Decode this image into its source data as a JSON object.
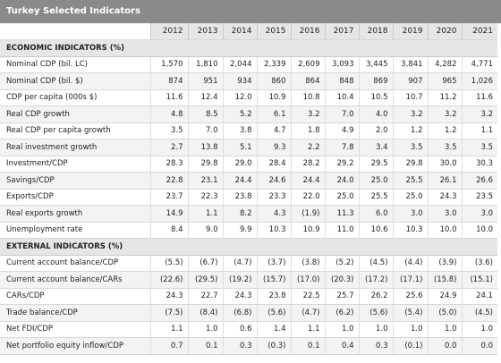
{
  "title": "Turkey Selected Indicators",
  "years": [
    "2012",
    "2013",
    "2014",
    "2015",
    "2016",
    "2017",
    "2018",
    "2019",
    "2020",
    "2021"
  ],
  "sections": [
    {
      "heading": "ECONOMIC INDICATORS (%)",
      "rows": [
        {
          "label": "Nominal CDP (bil. LC)",
          "values": [
            "1,570",
            "1,810",
            "2,044",
            "2,339",
            "2,609",
            "3,093",
            "3,445",
            "3,841",
            "4,282",
            "4,771"
          ]
        },
        {
          "label": "Nominal CDP (bil. $)",
          "values": [
            "874",
            "951",
            "934",
            "860",
            "864",
            "848",
            "869",
            "907",
            "965",
            "1,026"
          ]
        },
        {
          "label": "CDP per capita (000s $)",
          "values": [
            "11.6",
            "12.4",
            "12.0",
            "10.9",
            "10.8",
            "10.4",
            "10.5",
            "10.7",
            "11.2",
            "11.6"
          ]
        },
        {
          "label": "Real CDP growth",
          "values": [
            "4.8",
            "8.5",
            "5.2",
            "6.1",
            "3.2",
            "7.0",
            "4.0",
            "3.2",
            "3.2",
            "3.2"
          ]
        },
        {
          "label": "Real CDP per capita growth",
          "values": [
            "3.5",
            "7.0",
            "3.8",
            "4.7",
            "1.8",
            "4.9",
            "2.0",
            "1.2",
            "1.2",
            "1.1"
          ]
        },
        {
          "label": "Real investment growth",
          "values": [
            "2.7",
            "13.8",
            "5.1",
            "9.3",
            "2.2",
            "7.8",
            "3.4",
            "3.5",
            "3.5",
            "3.5"
          ]
        },
        {
          "label": "Investment/CDP",
          "values": [
            "28.3",
            "29.8",
            "29.0",
            "28.4",
            "28.2",
            "29.2",
            "29.5",
            "29.8",
            "30.0",
            "30.3"
          ]
        },
        {
          "label": "Savings/CDP",
          "values": [
            "22.8",
            "23.1",
            "24.4",
            "24.6",
            "24.4",
            "24.0",
            "25.0",
            "25.5",
            "26.1",
            "26.6"
          ]
        },
        {
          "label": "Exports/CDP",
          "values": [
            "23.7",
            "22.3",
            "23.8",
            "23.3",
            "22.0",
            "25.0",
            "25.5",
            "25.0",
            "24.3",
            "23.5"
          ]
        },
        {
          "label": "Real exports growth",
          "values": [
            "14.9",
            "1.1",
            "8.2",
            "4.3",
            "(1.9)",
            "11.3",
            "6.0",
            "3.0",
            "3.0",
            "3.0"
          ]
        },
        {
          "label": "Unemployment rate",
          "values": [
            "8.4",
            "9.0",
            "9.9",
            "10.3",
            "10.9",
            "11.0",
            "10.6",
            "10.3",
            "10.0",
            "10.0"
          ]
        }
      ]
    },
    {
      "heading": "EXTERNAL INDICATORS (%)",
      "rows": [
        {
          "label": "Current account balance/CDP",
          "values": [
            "(5.5)",
            "(6.7)",
            "(4.7)",
            "(3.7)",
            "(3.8)",
            "(5.2)",
            "(4.5)",
            "(4.4)",
            "(3.9)",
            "(3.6)"
          ]
        },
        {
          "label": "Current account balance/CARs",
          "values": [
            "(22.6)",
            "(29.5)",
            "(19.2)",
            "(15.7)",
            "(17.0)",
            "(20.3)",
            "(17.2)",
            "(17.1)",
            "(15.8)",
            "(15.1)"
          ]
        },
        {
          "label": "CARs/CDP",
          "values": [
            "24.3",
            "22.7",
            "24.3",
            "23.8",
            "22.5",
            "25.7",
            "26.2",
            "25.6",
            "24.9",
            "24.1"
          ]
        },
        {
          "label": "Trade balance/CDP",
          "values": [
            "(7.5)",
            "(8.4)",
            "(6.8)",
            "(5.6)",
            "(4.7)",
            "(6.2)",
            "(5.6)",
            "(5.4)",
            "(5.0)",
            "(4.5)"
          ]
        },
        {
          "label": "Net FDI/CDP",
          "values": [
            "1.1",
            "1.0",
            "0.6",
            "1.4",
            "1.1",
            "1.0",
            "1.0",
            "1.0",
            "1.0",
            "1.0"
          ]
        },
        {
          "label": "Net portfolio equity inflow/CDP",
          "values": [
            "0.7",
            "0.1",
            "0.3",
            "(0.3)",
            "0.1",
            "0.4",
            "0.3",
            "(0.1)",
            "0.0",
            "0.0"
          ]
        }
      ]
    }
  ]
}
